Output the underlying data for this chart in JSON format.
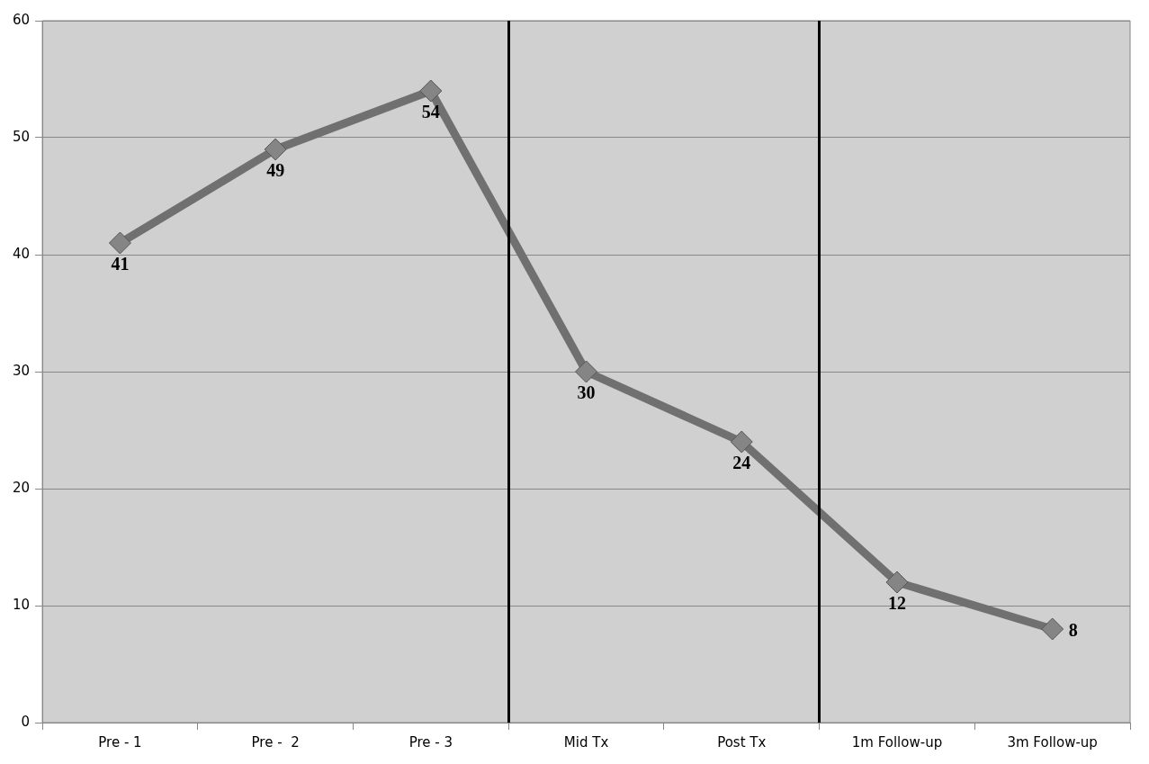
{
  "chart_data": {
    "type": "line",
    "categories": [
      "Pre - 1",
      "Pre -  2",
      "Pre - 3",
      "Mid Tx",
      "Post Tx",
      "1m Follow-up",
      "3m Follow-up"
    ],
    "series": [
      {
        "color": "#707070",
        "values": [
          41,
          49,
          54,
          30,
          24,
          12,
          8
        ]
      }
    ],
    "ylim": [
      0,
      60
    ],
    "yticks": [
      0,
      10,
      20,
      30,
      40,
      50,
      60
    ],
    "grid": "y",
    "marker": "diamond",
    "line_style": "solid",
    "data_labels": true,
    "legend": false
  }
}
